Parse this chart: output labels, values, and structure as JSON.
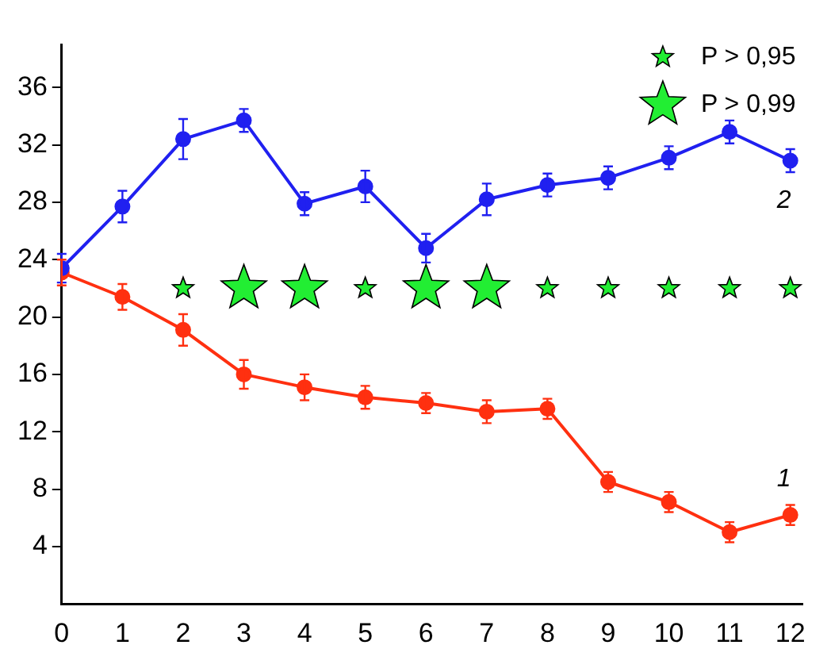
{
  "chart_data": {
    "type": "line",
    "x": [
      0,
      1,
      2,
      3,
      4,
      5,
      6,
      7,
      8,
      9,
      10,
      11,
      12
    ],
    "series": [
      {
        "name": "2",
        "color": "#2020f0",
        "marker": "circle",
        "values": [
          23.4,
          27.7,
          32.4,
          33.7,
          27.9,
          29.1,
          24.8,
          28.2,
          29.2,
          29.7,
          31.1,
          32.9,
          30.9
        ],
        "errors": [
          1.0,
          1.1,
          1.4,
          0.8,
          0.8,
          1.1,
          1.0,
          1.1,
          0.8,
          0.8,
          0.8,
          0.8,
          0.8
        ]
      },
      {
        "name": "1",
        "color": "#ff3010",
        "marker": "circle",
        "values": [
          23.1,
          21.4,
          19.1,
          16.0,
          15.1,
          14.4,
          14.0,
          13.4,
          13.6,
          8.5,
          7.1,
          5.0,
          6.2
        ],
        "errors": [
          0.9,
          0.9,
          1.1,
          1.0,
          0.9,
          0.8,
          0.7,
          0.8,
          0.7,
          0.7,
          0.7,
          0.7,
          0.7
        ]
      },
      {
        "type": "scatter",
        "name": "P > 0,95",
        "color": "#22ee33",
        "marker": "star",
        "x": [
          2,
          5,
          8,
          9,
          10,
          11,
          12
        ],
        "values": [
          22,
          22,
          22,
          22,
          22,
          22,
          22
        ]
      },
      {
        "type": "scatter",
        "name": "P > 0,99",
        "color": "#22ee33",
        "marker": "star",
        "x": [
          3,
          4,
          6,
          7
        ],
        "values": [
          22,
          22,
          22,
          22
        ]
      }
    ],
    "xlim": [
      0,
      12.2
    ],
    "xticks": [
      0,
      1,
      2,
      3,
      4,
      5,
      6,
      7,
      8,
      9,
      10,
      11,
      12
    ],
    "ylim": [
      0,
      39
    ],
    "yticks": [
      4,
      8,
      12,
      16,
      20,
      24,
      28,
      32,
      36
    ],
    "grid": false,
    "legend": "top right"
  }
}
